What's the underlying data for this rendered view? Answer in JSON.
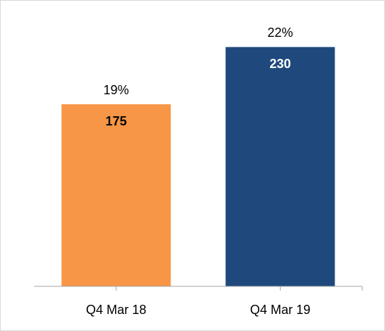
{
  "chart_data": {
    "type": "bar",
    "categories": [
      "Q4 Mar 18",
      "Q4 Mar 19"
    ],
    "values": [
      175,
      230
    ],
    "colors": [
      "#f79646",
      "#1f497d"
    ],
    "value_label_colors": [
      "#000000",
      "#ffffff"
    ],
    "annotations": [
      "19%",
      "22%"
    ],
    "ylim": [
      0,
      250
    ]
  }
}
